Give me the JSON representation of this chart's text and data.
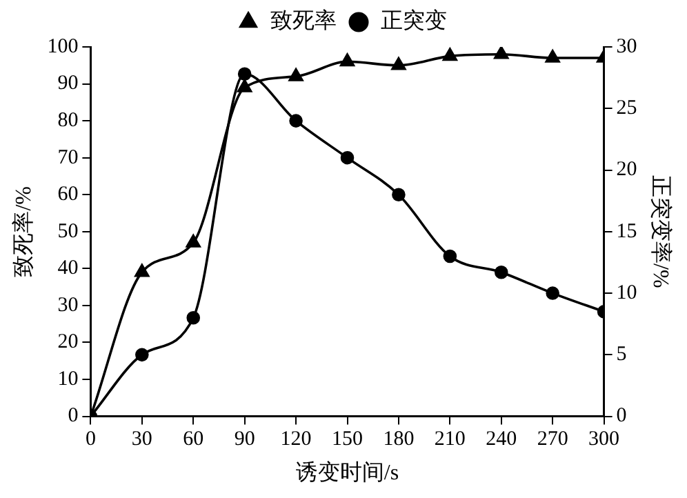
{
  "chart_data": {
    "type": "line",
    "xlabel": "诱变时间/s",
    "ylabel": "致死率/%",
    "y2label": "正突变率/%",
    "x": [
      0,
      30,
      60,
      90,
      120,
      150,
      180,
      210,
      240,
      270,
      300
    ],
    "series": [
      {
        "name": "致死率",
        "color": "#000000",
        "marker": "triangle",
        "values": [
          0,
          39,
          47,
          89,
          92,
          96,
          95,
          97.5,
          98,
          97,
          97
        ]
      },
      {
        "name": "正突变",
        "color": "#000000",
        "marker": "circle",
        "axis": "y2",
        "values": [
          0,
          5,
          8,
          27.8,
          24,
          21,
          18,
          13,
          11.7,
          10,
          8.5
        ]
      }
    ],
    "xlim": [
      0,
      300
    ],
    "xticks": [
      0,
      30,
      60,
      90,
      120,
      150,
      180,
      210,
      240,
      270,
      300
    ],
    "ylim": [
      0,
      100
    ],
    "yticks": [
      0,
      10,
      20,
      30,
      40,
      50,
      60,
      70,
      80,
      90,
      100
    ],
    "y2lim": [
      0,
      30
    ],
    "y2ticks": [
      0,
      5,
      10,
      15,
      20,
      25,
      30
    ],
    "grid": false,
    "legend": "top",
    "line_style": "solid"
  }
}
